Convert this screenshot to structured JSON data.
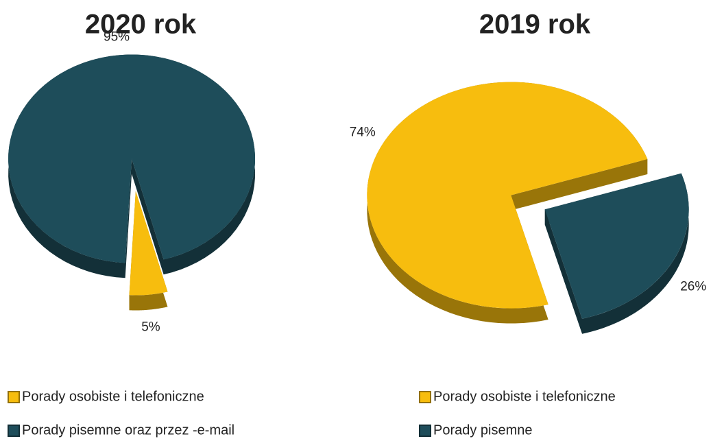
{
  "chart_data": [
    {
      "type": "pie",
      "title": "2020 rok",
      "categories": [
        "Porady osobiste i telefoniczne",
        "Porady pisemne oraz przez -e-mail"
      ],
      "values": [
        5,
        95
      ],
      "value_labels": [
        "5%",
        "95%"
      ],
      "colors": [
        "#f7bd0e",
        "#1e4d5a"
      ]
    },
    {
      "type": "pie",
      "title": "2019 rok",
      "categories": [
        "Porady osobiste i telefoniczne",
        "Porady pisemne"
      ],
      "values": [
        74,
        26
      ],
      "value_labels": [
        "74%",
        "26%"
      ],
      "colors": [
        "#f7bd0e",
        "#1e4d5a"
      ]
    }
  ]
}
